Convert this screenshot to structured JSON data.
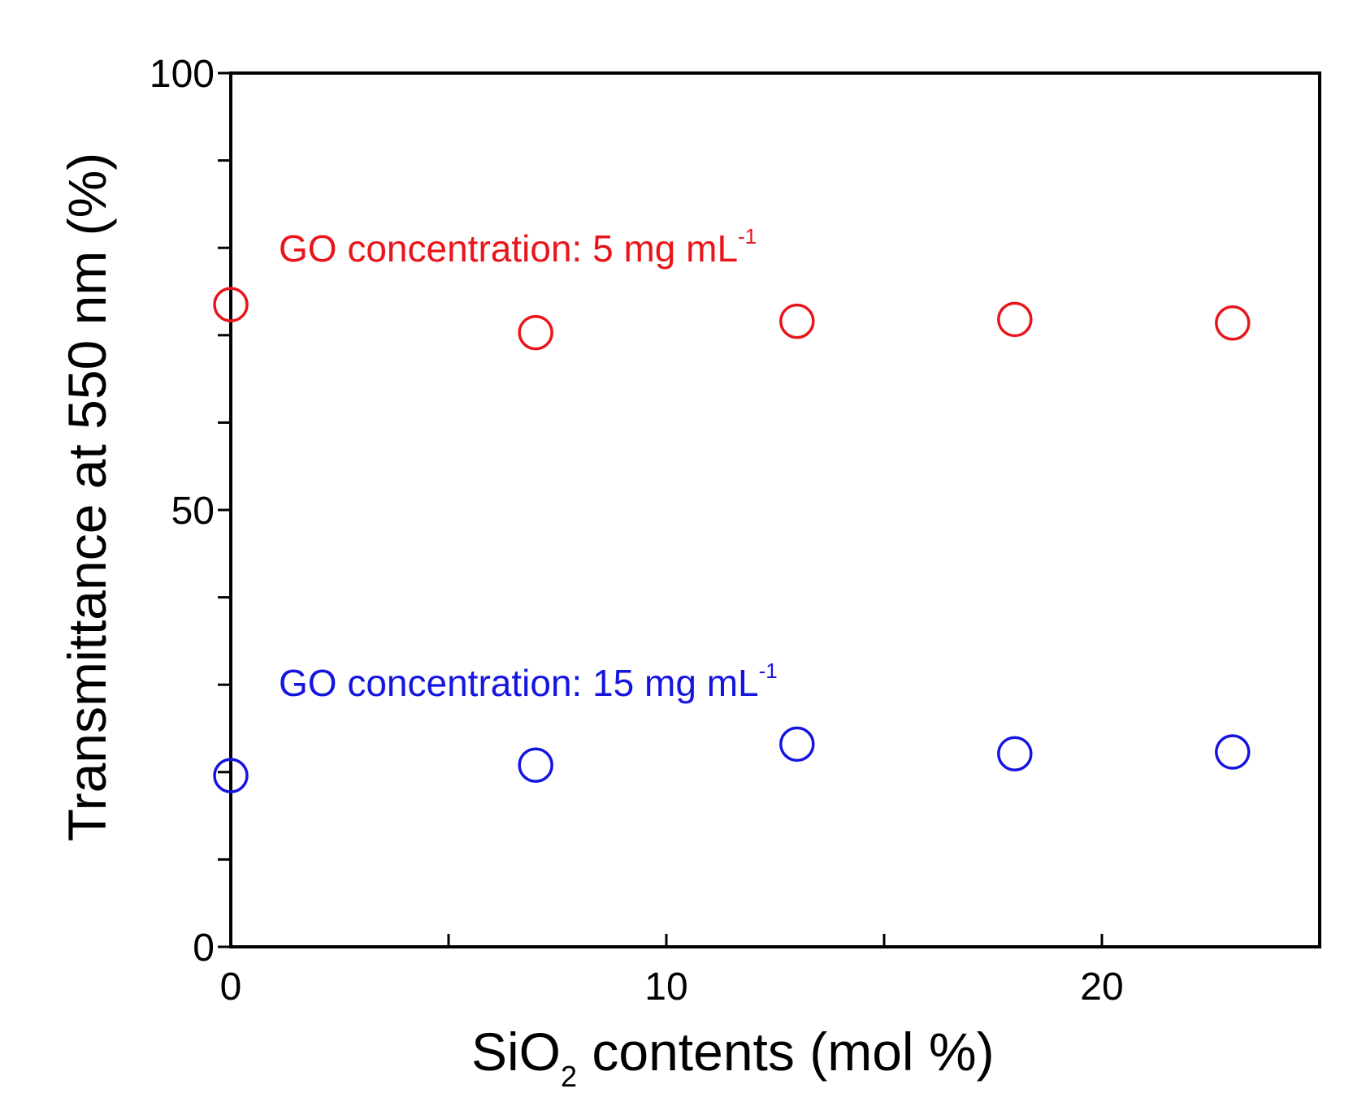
{
  "chart_data": {
    "type": "scatter",
    "title": "",
    "xlabel": {
      "main": "SiO",
      "subscript": "2",
      "rest": " contents (mol %)"
    },
    "ylabel": "Transmittance at 550 nm (%)",
    "xlim": [
      0,
      25
    ],
    "ylim": [
      0,
      100
    ],
    "x_ticks": [
      0,
      10,
      20
    ],
    "x_minor_ticks": [
      5,
      15
    ],
    "y_ticks": [
      0,
      50,
      100
    ],
    "y_minor_ticks": [
      10,
      20,
      30,
      40,
      60,
      70,
      80,
      90
    ],
    "grid": false,
    "marker": "open-circle",
    "series": [
      {
        "name": "GO concentration: 5 mg mL-1",
        "label_text": "GO concentration: 5 mg mL",
        "label_superscript": "-1",
        "color": "#e8151b",
        "x": [
          0,
          7,
          13,
          18,
          23
        ],
        "y": [
          73.5,
          70.3,
          71.6,
          71.8,
          71.4
        ]
      },
      {
        "name": "GO concentration: 15 mg mL-1",
        "label_text": "GO concentration: 15 mg mL",
        "label_superscript": "-1",
        "color": "#1515e0",
        "x": [
          0,
          7,
          13,
          18,
          23
        ],
        "y": [
          19.6,
          20.8,
          23.2,
          22.1,
          22.3
        ]
      }
    ]
  }
}
